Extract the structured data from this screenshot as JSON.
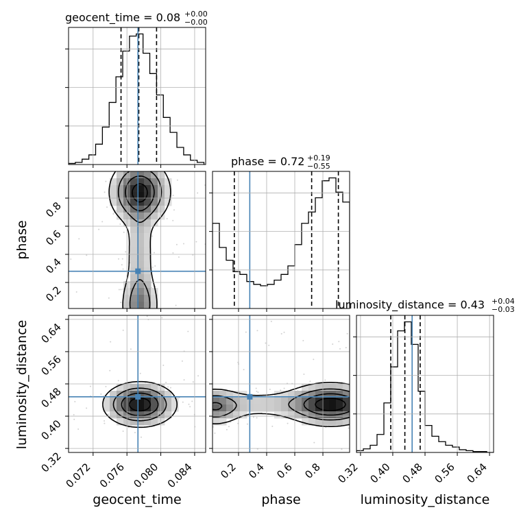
{
  "chart_data": {
    "type": "corner",
    "parameters": [
      {
        "name": "geocent_time",
        "range": [
          0.0691,
          0.0853
        ],
        "ticks": [
          "0.072",
          "0.076",
          "0.080",
          "0.084"
        ],
        "tick_values": [
          0.072,
          0.076,
          0.08,
          0.084
        ],
        "truth": 0.0773
      },
      {
        "name": "phase",
        "range": [
          0.015,
          0.99
        ],
        "ticks": [
          "0.2",
          "0.4",
          "0.6",
          "0.8"
        ],
        "tick_values": [
          0.2,
          0.4,
          0.6,
          0.8
        ],
        "truth": 0.28
      },
      {
        "name": "luminosity_distance",
        "range": [
          0.31,
          0.65
        ],
        "ticks": [
          "0.32",
          "0.40",
          "0.48",
          "0.56",
          "0.64"
        ],
        "tick_values": [
          0.32,
          0.4,
          0.48,
          0.56,
          0.64
        ],
        "truth": 0.448
      }
    ],
    "titles": [
      {
        "param": "geocent_time",
        "main": "geocent_time = 0.08",
        "sup": "+0.00",
        "sub": "−0.00"
      },
      {
        "param": "phase",
        "main": "phase = 0.72",
        "sup": "+0.19",
        "sub": "−0.55"
      },
      {
        "param": "luminosity_distance",
        "main": "luminosity_distance = 0.43",
        "sup": "+0.04",
        "sub": "−0.03"
      }
    ],
    "marginals": [
      {
        "param": "geocent_time",
        "quantiles": [
          0.0753,
          0.0774,
          0.0795
        ],
        "median": 0.0774,
        "bins": [
          0.0691,
          0.0699,
          0.0707,
          0.0715,
          0.0723,
          0.0731,
          0.0739,
          0.0747,
          0.0755,
          0.0763,
          0.0771,
          0.0779,
          0.0787,
          0.0795,
          0.0803,
          0.0811,
          0.0819,
          0.0827,
          0.0835,
          0.0843,
          0.0851
        ],
        "counts": [
          1,
          2,
          5,
          9,
          19,
          35,
          58,
          82,
          106,
          120,
          122,
          104,
          85,
          65,
          44,
          30,
          16,
          9,
          4,
          2
        ]
      },
      {
        "param": "phase",
        "quantiles": [
          0.17,
          0.72,
          0.91
        ],
        "median": 0.72,
        "bins": [
          0.015,
          0.0637,
          0.1125,
          0.1612,
          0.21,
          0.2587,
          0.3075,
          0.3562,
          0.405,
          0.4537,
          0.5025,
          0.5512,
          0.6,
          0.6487,
          0.6975,
          0.7462,
          0.795,
          0.8437,
          0.8925,
          0.9412,
          0.99
        ],
        "counts": [
          60,
          43,
          34,
          26,
          24,
          19,
          17,
          16,
          17,
          20,
          24,
          30,
          45,
          60,
          68,
          78,
          90,
          92,
          82,
          75
        ]
      },
      {
        "param": "luminosity_distance",
        "quantiles": [
          0.395,
          0.43,
          0.468
        ],
        "median": 0.43,
        "bins": [
          0.31,
          0.327,
          0.344,
          0.361,
          0.378,
          0.395,
          0.412,
          0.429,
          0.446,
          0.463,
          0.48,
          0.497,
          0.514,
          0.531,
          0.548,
          0.565,
          0.582,
          0.599,
          0.616,
          0.633,
          0.65
        ],
        "counts": [
          2,
          4,
          8,
          20,
          55,
          95,
          135,
          145,
          120,
          68,
          30,
          18,
          12,
          8,
          6,
          3,
          2,
          1,
          1,
          0
        ]
      }
    ],
    "joint": [
      {
        "x": "geocent_time",
        "y": "phase"
      },
      {
        "x": "geocent_time",
        "y": "luminosity_distance"
      },
      {
        "x": "phase",
        "y": "luminosity_distance"
      }
    ],
    "truth_color": "#4682b4",
    "grid": true
  }
}
